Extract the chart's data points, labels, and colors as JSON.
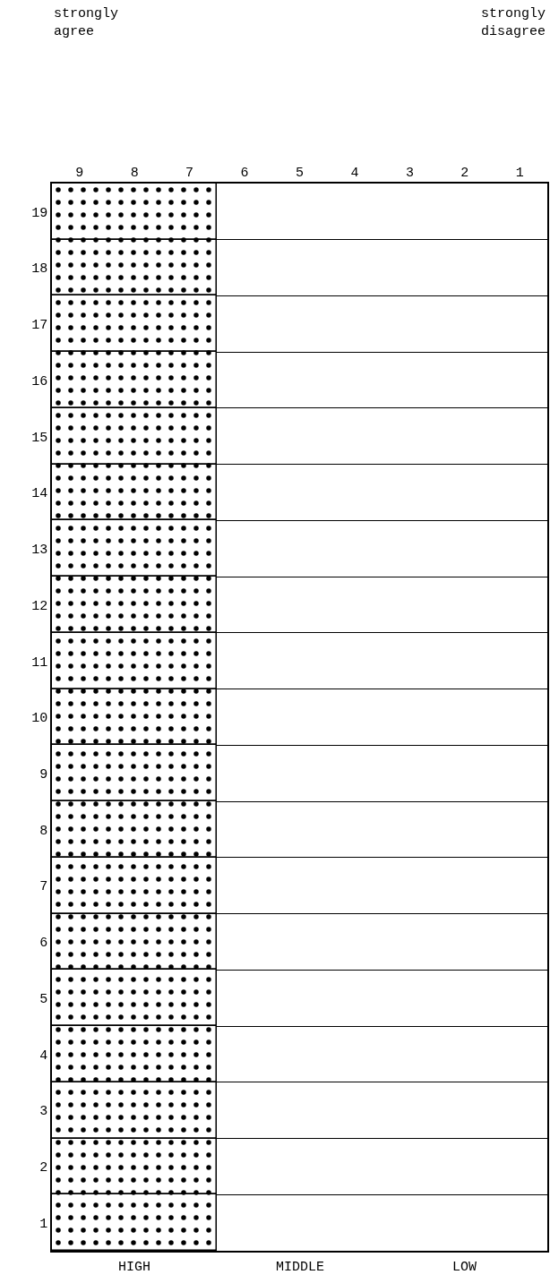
{
  "chart_data": {
    "type": "bar",
    "orientation": "horizontal",
    "categories": [
      "19",
      "18",
      "17",
      "16",
      "15",
      "14",
      "13",
      "12",
      "11",
      "10",
      "9",
      "8",
      "7",
      "6",
      "5",
      "4",
      "3",
      "2",
      "1"
    ],
    "values": [
      -3,
      -3,
      -3,
      -3,
      -3,
      -3,
      -3,
      -3,
      -3,
      -3,
      -3,
      -3,
      -3,
      -3,
      -3,
      -3,
      -3,
      -3,
      -3
    ],
    "base": [
      9.5,
      9.5,
      9.5,
      9.5,
      9.5,
      9.5,
      9.5,
      9.5,
      9.5,
      9.5,
      9.5,
      9.5,
      9.5,
      9.5,
      9.5,
      9.5,
      9.5,
      9.5,
      9.5
    ],
    "color": "#000000",
    "xlim": [
      9.5,
      0.5
    ],
    "xticks": [
      9,
      8,
      7,
      6,
      5,
      4,
      3,
      2,
      1
    ],
    "grid": "y",
    "annotations": [
      "strongly\nagree",
      "strongly\ndisagree",
      "HIGH",
      "MIDDLE",
      "LOW"
    ]
  }
}
